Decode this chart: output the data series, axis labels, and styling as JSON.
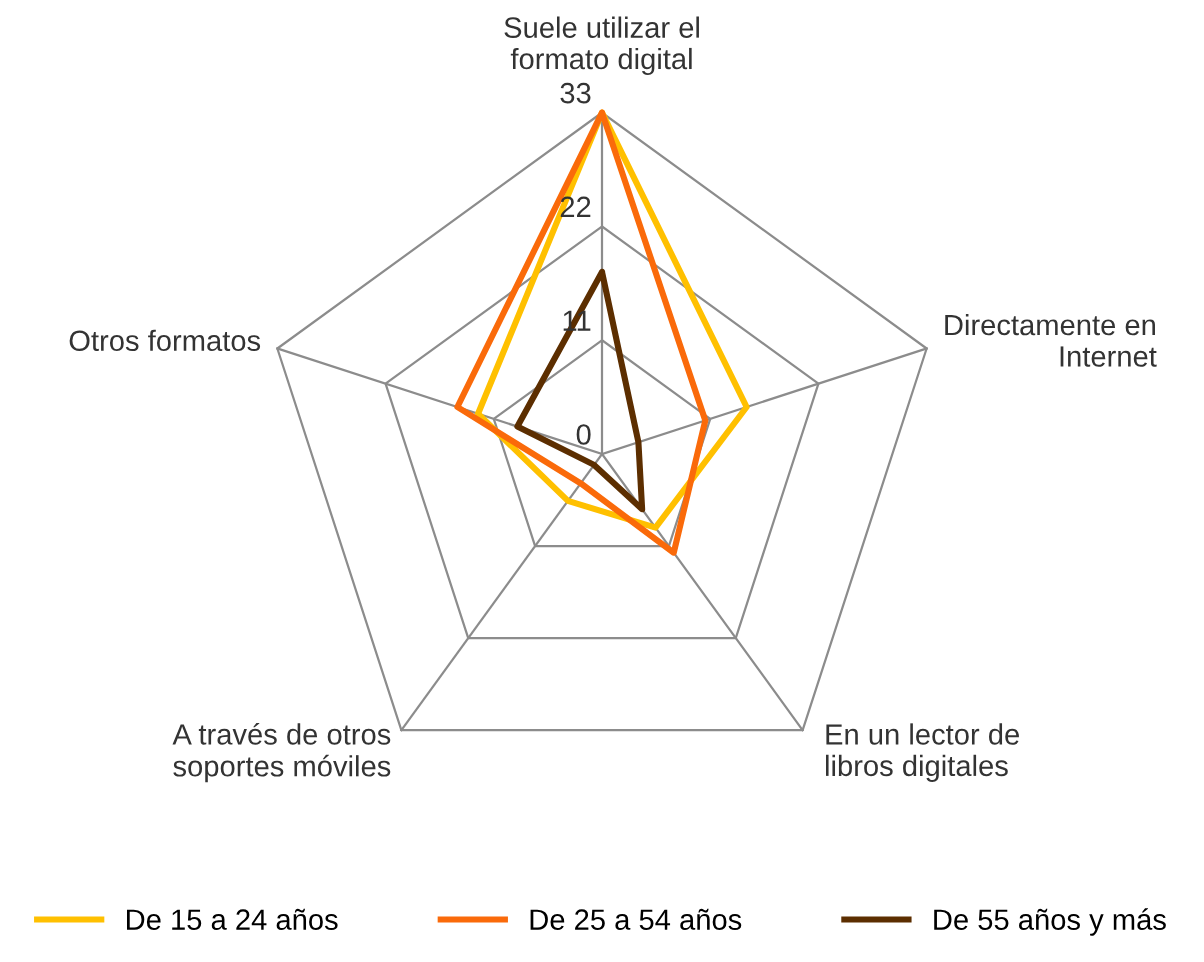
{
  "chart_data": {
    "type": "radar",
    "categories": [
      "Suele utilizar el\nformato digital",
      "Directamente en\nInternet",
      "En un lector de\nlibros digitales",
      "A través de otros\nsoportes móviles",
      "Otros formatos"
    ],
    "series": [
      {
        "name": "De 15 a 24 años",
        "color": "#ffc000",
        "values": [
          33,
          14.7,
          8.8,
          5.6,
          12.6
        ]
      },
      {
        "name": "De 25 a 54 años",
        "color": "#fa6a0a",
        "values": [
          33,
          10.5,
          11.8,
          3.5,
          14.7
        ]
      },
      {
        "name": "De 55 años y más",
        "color": "#5c2e00",
        "values": [
          17.6,
          3.7,
          6.6,
          1.3,
          8.6
        ]
      }
    ],
    "ylim": [
      0,
      33
    ],
    "yticks": [
      0,
      11,
      22,
      33
    ],
    "grid": true,
    "legend": "bottom",
    "marker": "none",
    "line_style": "solid"
  }
}
